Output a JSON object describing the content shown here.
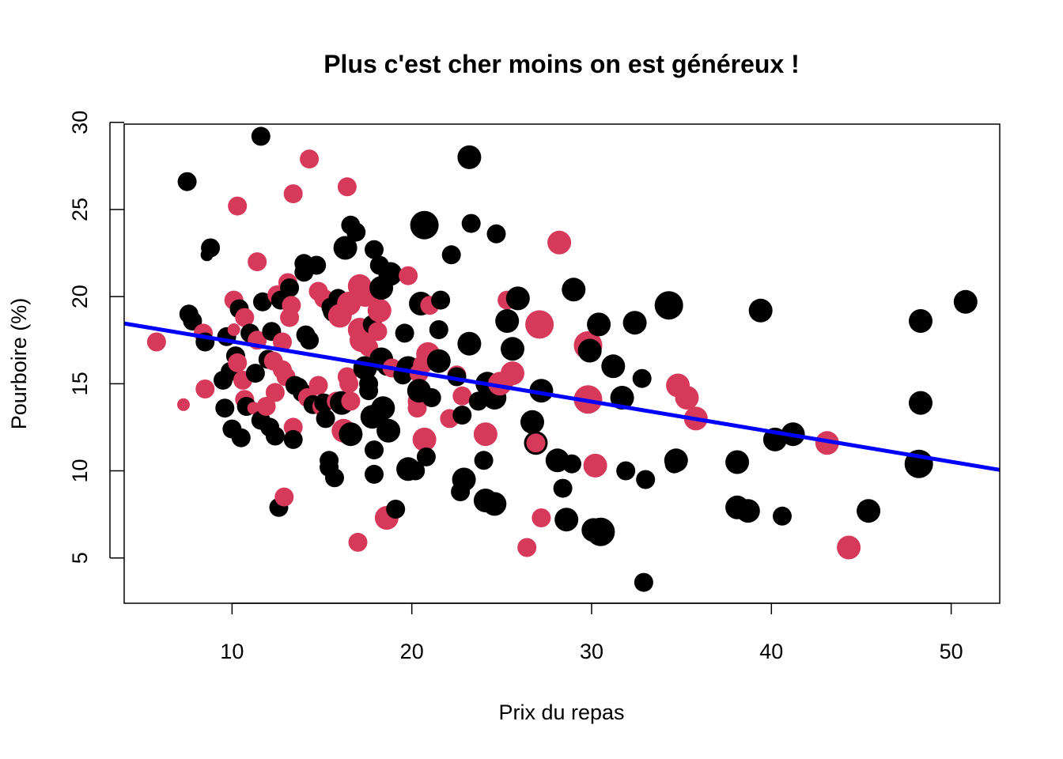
{
  "chart_data": {
    "type": "scatter",
    "title": "Plus c'est cher moins on est généreux !",
    "xlabel": "Prix du repas",
    "ylabel": "Pourboire (%)",
    "xlim": [
      4,
      52.7
    ],
    "ylim": [
      2.4,
      29.9
    ],
    "xticks": [
      10,
      20,
      30,
      40,
      50
    ],
    "yticks": [
      5,
      10,
      15,
      20,
      25,
      30
    ],
    "grid": false,
    "legend": "none",
    "colors": {
      "black": "#000000",
      "red": "#d6395a",
      "line": "#0000ff"
    },
    "size_levels": {
      "1": 8,
      "2": 12,
      "3": 15,
      "4": 18
    },
    "regression": {
      "intercept": 19.15,
      "slope": -0.1726
    },
    "points": [
      {
        "x": 5.8,
        "y": 17.4,
        "c": "red",
        "s": 2
      },
      {
        "x": 7.3,
        "y": 13.8,
        "c": "red",
        "s": 1
      },
      {
        "x": 7.5,
        "y": 26.6,
        "c": "black",
        "s": 2
      },
      {
        "x": 7.6,
        "y": 19.0,
        "c": "black",
        "s": 2
      },
      {
        "x": 7.8,
        "y": 18.6,
        "c": "black",
        "s": 2
      },
      {
        "x": 8.4,
        "y": 17.9,
        "c": "red",
        "s": 2
      },
      {
        "x": 8.5,
        "y": 17.4,
        "c": "black",
        "s": 2
      },
      {
        "x": 8.5,
        "y": 14.7,
        "c": "red",
        "s": 2
      },
      {
        "x": 8.6,
        "y": 22.4,
        "c": "black",
        "s": 1
      },
      {
        "x": 8.8,
        "y": 22.8,
        "c": "black",
        "s": 2
      },
      {
        "x": 9.5,
        "y": 15.2,
        "c": "black",
        "s": 2
      },
      {
        "x": 9.6,
        "y": 13.6,
        "c": "black",
        "s": 2
      },
      {
        "x": 9.7,
        "y": 17.7,
        "c": "black",
        "s": 2
      },
      {
        "x": 9.9,
        "y": 15.7,
        "c": "black",
        "s": 2
      },
      {
        "x": 10.0,
        "y": 12.4,
        "c": "black",
        "s": 2
      },
      {
        "x": 10.1,
        "y": 19.8,
        "c": "red",
        "s": 2
      },
      {
        "x": 10.1,
        "y": 18.1,
        "c": "red",
        "s": 1
      },
      {
        "x": 10.2,
        "y": 16.6,
        "c": "black",
        "s": 2
      },
      {
        "x": 10.3,
        "y": 25.2,
        "c": "red",
        "s": 2
      },
      {
        "x": 10.3,
        "y": 16.2,
        "c": "red",
        "s": 2
      },
      {
        "x": 10.4,
        "y": 19.3,
        "c": "black",
        "s": 2
      },
      {
        "x": 10.5,
        "y": 11.9,
        "c": "black",
        "s": 2
      },
      {
        "x": 10.6,
        "y": 15.2,
        "c": "red",
        "s": 2
      },
      {
        "x": 10.7,
        "y": 18.8,
        "c": "red",
        "s": 2
      },
      {
        "x": 10.7,
        "y": 14.1,
        "c": "red",
        "s": 2
      },
      {
        "x": 10.8,
        "y": 13.7,
        "c": "black",
        "s": 2
      },
      {
        "x": 11.0,
        "y": 17.9,
        "c": "black",
        "s": 2
      },
      {
        "x": 11.2,
        "y": 13.6,
        "c": "red",
        "s": 1
      },
      {
        "x": 11.3,
        "y": 15.6,
        "c": "black",
        "s": 2
      },
      {
        "x": 11.4,
        "y": 22.0,
        "c": "red",
        "s": 2
      },
      {
        "x": 11.4,
        "y": 17.5,
        "c": "red",
        "s": 2
      },
      {
        "x": 11.6,
        "y": 29.2,
        "c": "black",
        "s": 2
      },
      {
        "x": 11.6,
        "y": 12.9,
        "c": "black",
        "s": 2
      },
      {
        "x": 11.7,
        "y": 19.7,
        "c": "black",
        "s": 2
      },
      {
        "x": 11.9,
        "y": 13.7,
        "c": "red",
        "s": 2
      },
      {
        "x": 12.0,
        "y": 16.4,
        "c": "black",
        "s": 2
      },
      {
        "x": 12.1,
        "y": 12.5,
        "c": "black",
        "s": 2
      },
      {
        "x": 12.2,
        "y": 18.0,
        "c": "black",
        "s": 2
      },
      {
        "x": 12.3,
        "y": 16.3,
        "c": "red",
        "s": 2
      },
      {
        "x": 12.4,
        "y": 14.5,
        "c": "red",
        "s": 2
      },
      {
        "x": 12.4,
        "y": 12.0,
        "c": "black",
        "s": 2
      },
      {
        "x": 12.5,
        "y": 20.1,
        "c": "red",
        "s": 2
      },
      {
        "x": 12.6,
        "y": 7.9,
        "c": "black",
        "s": 2
      },
      {
        "x": 12.7,
        "y": 19.8,
        "c": "black",
        "s": 2
      },
      {
        "x": 12.8,
        "y": 17.4,
        "c": "red",
        "s": 2
      },
      {
        "x": 12.8,
        "y": 15.8,
        "c": "red",
        "s": 2
      },
      {
        "x": 12.9,
        "y": 8.5,
        "c": "red",
        "s": 2
      },
      {
        "x": 13.0,
        "y": 15.4,
        "c": "red",
        "s": 2
      },
      {
        "x": 13.1,
        "y": 20.8,
        "c": "red",
        "s": 2
      },
      {
        "x": 13.2,
        "y": 20.5,
        "c": "black",
        "s": 2
      },
      {
        "x": 13.2,
        "y": 18.8,
        "c": "red",
        "s": 2
      },
      {
        "x": 13.3,
        "y": 19.5,
        "c": "red",
        "s": 2
      },
      {
        "x": 13.4,
        "y": 25.9,
        "c": "red",
        "s": 2
      },
      {
        "x": 13.4,
        "y": 12.5,
        "c": "red",
        "s": 2
      },
      {
        "x": 13.4,
        "y": 11.8,
        "c": "black",
        "s": 2
      },
      {
        "x": 13.5,
        "y": 14.9,
        "c": "black",
        "s": 2
      },
      {
        "x": 13.7,
        "y": 14.8,
        "c": "black",
        "s": 2
      },
      {
        "x": 13.9,
        "y": 14.5,
        "c": "black",
        "s": 2
      },
      {
        "x": 14.0,
        "y": 21.9,
        "c": "black",
        "s": 2
      },
      {
        "x": 14.0,
        "y": 21.4,
        "c": "black",
        "s": 2
      },
      {
        "x": 14.1,
        "y": 17.8,
        "c": "black",
        "s": 2
      },
      {
        "x": 14.2,
        "y": 14.2,
        "c": "red",
        "s": 2
      },
      {
        "x": 14.3,
        "y": 27.9,
        "c": "red",
        "s": 2
      },
      {
        "x": 14.3,
        "y": 17.5,
        "c": "black",
        "s": 2
      },
      {
        "x": 14.5,
        "y": 13.8,
        "c": "black",
        "s": 2
      },
      {
        "x": 14.7,
        "y": 21.8,
        "c": "black",
        "s": 2
      },
      {
        "x": 14.8,
        "y": 20.3,
        "c": "red",
        "s": 2
      },
      {
        "x": 14.8,
        "y": 14.9,
        "c": "red",
        "s": 2
      },
      {
        "x": 15.0,
        "y": 13.7,
        "c": "red",
        "s": 2
      },
      {
        "x": 15.1,
        "y": 19.9,
        "c": "red",
        "s": 2
      },
      {
        "x": 15.1,
        "y": 13.9,
        "c": "black",
        "s": 2
      },
      {
        "x": 15.2,
        "y": 13.0,
        "c": "black",
        "s": 2
      },
      {
        "x": 15.4,
        "y": 10.6,
        "c": "black",
        "s": 2
      },
      {
        "x": 15.4,
        "y": 10.2,
        "c": "black",
        "s": 2
      },
      {
        "x": 15.5,
        "y": 19.4,
        "c": "black",
        "s": 2
      },
      {
        "x": 15.7,
        "y": 9.6,
        "c": "black",
        "s": 2
      },
      {
        "x": 15.7,
        "y": 19.2,
        "c": "black",
        "s": 3
      },
      {
        "x": 15.8,
        "y": 14.0,
        "c": "red",
        "s": 2
      },
      {
        "x": 15.9,
        "y": 19.9,
        "c": "black",
        "s": 2
      },
      {
        "x": 16.0,
        "y": 18.9,
        "c": "red",
        "s": 3
      },
      {
        "x": 16.1,
        "y": 13.9,
        "c": "black",
        "s": 3
      },
      {
        "x": 16.2,
        "y": 12.3,
        "c": "red",
        "s": 3
      },
      {
        "x": 16.3,
        "y": 22.8,
        "c": "black",
        "s": 3
      },
      {
        "x": 16.4,
        "y": 26.3,
        "c": "red",
        "s": 2
      },
      {
        "x": 16.4,
        "y": 15.4,
        "c": "red",
        "s": 2
      },
      {
        "x": 16.5,
        "y": 19.6,
        "c": "red",
        "s": 3
      },
      {
        "x": 16.5,
        "y": 15.0,
        "c": "red",
        "s": 2
      },
      {
        "x": 16.6,
        "y": 14.0,
        "c": "red",
        "s": 2
      },
      {
        "x": 16.6,
        "y": 12.1,
        "c": "black",
        "s": 3
      },
      {
        "x": 16.6,
        "y": 24.1,
        "c": "black",
        "s": 2
      },
      {
        "x": 16.9,
        "y": 23.7,
        "c": "black",
        "s": 2
      },
      {
        "x": 17.0,
        "y": 5.9,
        "c": "red",
        "s": 2
      },
      {
        "x": 17.1,
        "y": 18.1,
        "c": "red",
        "s": 3
      },
      {
        "x": 17.1,
        "y": 20.6,
        "c": "red",
        "s": 3
      },
      {
        "x": 17.2,
        "y": 17.5,
        "c": "red",
        "s": 3
      },
      {
        "x": 17.4,
        "y": 15.9,
        "c": "black",
        "s": 3
      },
      {
        "x": 17.4,
        "y": 20.1,
        "c": "red",
        "s": 3
      },
      {
        "x": 17.6,
        "y": 17.1,
        "c": "red",
        "s": 2
      },
      {
        "x": 17.6,
        "y": 15.0,
        "c": "black",
        "s": 2
      },
      {
        "x": 17.6,
        "y": 14.6,
        "c": "black",
        "s": 2
      },
      {
        "x": 17.8,
        "y": 18.4,
        "c": "black",
        "s": 2
      },
      {
        "x": 17.8,
        "y": 13.1,
        "c": "black",
        "s": 3
      },
      {
        "x": 17.9,
        "y": 9.8,
        "c": "black",
        "s": 2
      },
      {
        "x": 17.9,
        "y": 22.7,
        "c": "black",
        "s": 2
      },
      {
        "x": 17.9,
        "y": 11.2,
        "c": "black",
        "s": 2
      },
      {
        "x": 18.1,
        "y": 18.0,
        "c": "red",
        "s": 2
      },
      {
        "x": 18.2,
        "y": 21.8,
        "c": "black",
        "s": 2
      },
      {
        "x": 18.2,
        "y": 19.2,
        "c": "red",
        "s": 3
      },
      {
        "x": 18.3,
        "y": 16.4,
        "c": "black",
        "s": 3
      },
      {
        "x": 18.3,
        "y": 20.5,
        "c": "black",
        "s": 3
      },
      {
        "x": 18.4,
        "y": 13.6,
        "c": "black",
        "s": 3
      },
      {
        "x": 18.6,
        "y": 16.0,
        "c": "black",
        "s": 2
      },
      {
        "x": 18.6,
        "y": 7.3,
        "c": "red",
        "s": 3
      },
      {
        "x": 18.7,
        "y": 12.3,
        "c": "black",
        "s": 3
      },
      {
        "x": 18.8,
        "y": 21.3,
        "c": "black",
        "s": 3
      },
      {
        "x": 18.9,
        "y": 15.9,
        "c": "red",
        "s": 2
      },
      {
        "x": 19.1,
        "y": 7.8,
        "c": "black",
        "s": 2
      },
      {
        "x": 19.5,
        "y": 15.5,
        "c": "black",
        "s": 2
      },
      {
        "x": 19.6,
        "y": 17.9,
        "c": "black",
        "s": 2
      },
      {
        "x": 19.8,
        "y": 21.2,
        "c": "red",
        "s": 2
      },
      {
        "x": 19.8,
        "y": 15.9,
        "c": "black",
        "s": 3
      },
      {
        "x": 19.8,
        "y": 10.1,
        "c": "black",
        "s": 3
      },
      {
        "x": 20.2,
        "y": 10.0,
        "c": "black",
        "s": 2
      },
      {
        "x": 20.3,
        "y": 14.0,
        "c": "red",
        "s": 2
      },
      {
        "x": 20.3,
        "y": 13.6,
        "c": "red",
        "s": 2
      },
      {
        "x": 20.4,
        "y": 15.6,
        "c": "red",
        "s": 2
      },
      {
        "x": 20.4,
        "y": 14.6,
        "c": "black",
        "s": 3
      },
      {
        "x": 20.5,
        "y": 19.6,
        "c": "black",
        "s": 3
      },
      {
        "x": 20.6,
        "y": 16.1,
        "c": "red",
        "s": 2
      },
      {
        "x": 20.7,
        "y": 24.1,
        "c": "black",
        "s": 4
      },
      {
        "x": 20.7,
        "y": 11.8,
        "c": "red",
        "s": 3
      },
      {
        "x": 20.8,
        "y": 10.8,
        "c": "black",
        "s": 2
      },
      {
        "x": 20.9,
        "y": 16.7,
        "c": "red",
        "s": 3
      },
      {
        "x": 21.0,
        "y": 19.5,
        "c": "red",
        "s": 2
      },
      {
        "x": 21.1,
        "y": 14.2,
        "c": "black",
        "s": 2
      },
      {
        "x": 21.5,
        "y": 16.3,
        "c": "black",
        "s": 3
      },
      {
        "x": 21.5,
        "y": 18.1,
        "c": "black",
        "s": 2
      },
      {
        "x": 21.6,
        "y": 19.8,
        "c": "black",
        "s": 2
      },
      {
        "x": 22.1,
        "y": 13.0,
        "c": "red",
        "s": 2
      },
      {
        "x": 22.2,
        "y": 22.4,
        "c": "black",
        "s": 2
      },
      {
        "x": 22.5,
        "y": 15.5,
        "c": "red",
        "s": 2
      },
      {
        "x": 22.5,
        "y": 15.4,
        "c": "black",
        "s": 2
      },
      {
        "x": 22.7,
        "y": 8.8,
        "c": "black",
        "s": 2
      },
      {
        "x": 22.8,
        "y": 13.2,
        "c": "black",
        "s": 2
      },
      {
        "x": 22.8,
        "y": 14.3,
        "c": "red",
        "s": 2
      },
      {
        "x": 22.9,
        "y": 9.5,
        "c": "black",
        "s": 3
      },
      {
        "x": 23.2,
        "y": 28.0,
        "c": "black",
        "s": 3
      },
      {
        "x": 23.2,
        "y": 17.3,
        "c": "black",
        "s": 3
      },
      {
        "x": 23.3,
        "y": 24.2,
        "c": "black",
        "s": 2
      },
      {
        "x": 23.7,
        "y": 14.0,
        "c": "black",
        "s": 2
      },
      {
        "x": 24.0,
        "y": 10.6,
        "c": "black",
        "s": 2
      },
      {
        "x": 24.1,
        "y": 12.1,
        "c": "red",
        "s": 3
      },
      {
        "x": 24.1,
        "y": 8.3,
        "c": "black",
        "s": 3
      },
      {
        "x": 24.2,
        "y": 15.0,
        "c": "black",
        "s": 3
      },
      {
        "x": 24.6,
        "y": 8.1,
        "c": "black",
        "s": 3
      },
      {
        "x": 24.6,
        "y": 14.2,
        "c": "black",
        "s": 3
      },
      {
        "x": 24.7,
        "y": 23.6,
        "c": "black",
        "s": 2
      },
      {
        "x": 24.9,
        "y": 15.0,
        "c": "red",
        "s": 3
      },
      {
        "x": 25.2,
        "y": 15.2,
        "c": "red",
        "s": 2
      },
      {
        "x": 25.3,
        "y": 19.8,
        "c": "red",
        "s": 2
      },
      {
        "x": 25.3,
        "y": 18.6,
        "c": "black",
        "s": 3
      },
      {
        "x": 25.6,
        "y": 17.0,
        "c": "black",
        "s": 3
      },
      {
        "x": 25.6,
        "y": 15.6,
        "c": "red",
        "s": 3
      },
      {
        "x": 25.9,
        "y": 19.9,
        "c": "black",
        "s": 3
      },
      {
        "x": 26.4,
        "y": 5.6,
        "c": "red",
        "s": 2
      },
      {
        "x": 26.7,
        "y": 12.8,
        "c": "black",
        "s": 3
      },
      {
        "x": 26.9,
        "y": 11.6,
        "c": "black",
        "s": 3
      },
      {
        "x": 26.9,
        "y": 11.6,
        "c": "red",
        "s": 2
      },
      {
        "x": 27.1,
        "y": 18.4,
        "c": "red",
        "s": 4
      },
      {
        "x": 27.2,
        "y": 7.3,
        "c": "red",
        "s": 2
      },
      {
        "x": 27.2,
        "y": 14.6,
        "c": "black",
        "s": 3
      },
      {
        "x": 28.1,
        "y": 10.6,
        "c": "black",
        "s": 3
      },
      {
        "x": 28.2,
        "y": 23.1,
        "c": "red",
        "s": 3
      },
      {
        "x": 28.4,
        "y": 9.0,
        "c": "black",
        "s": 2
      },
      {
        "x": 28.6,
        "y": 7.2,
        "c": "black",
        "s": 3
      },
      {
        "x": 28.9,
        "y": 10.4,
        "c": "black",
        "s": 2
      },
      {
        "x": 29.0,
        "y": 20.4,
        "c": "black",
        "s": 3
      },
      {
        "x": 29.8,
        "y": 17.2,
        "c": "red",
        "s": 4
      },
      {
        "x": 29.8,
        "y": 14.1,
        "c": "red",
        "s": 4
      },
      {
        "x": 29.9,
        "y": 16.9,
        "c": "black",
        "s": 3
      },
      {
        "x": 30.1,
        "y": 6.6,
        "c": "black",
        "s": 3
      },
      {
        "x": 30.2,
        "y": 10.3,
        "c": "red",
        "s": 3
      },
      {
        "x": 30.4,
        "y": 18.4,
        "c": "black",
        "s": 3
      },
      {
        "x": 30.5,
        "y": 6.5,
        "c": "black",
        "s": 4
      },
      {
        "x": 31.2,
        "y": 16.0,
        "c": "black",
        "s": 3
      },
      {
        "x": 31.7,
        "y": 14.2,
        "c": "black",
        "s": 3
      },
      {
        "x": 31.9,
        "y": 10.0,
        "c": "black",
        "s": 2
      },
      {
        "x": 32.4,
        "y": 18.5,
        "c": "black",
        "s": 3
      },
      {
        "x": 32.8,
        "y": 15.3,
        "c": "black",
        "s": 2
      },
      {
        "x": 32.9,
        "y": 3.6,
        "c": "black",
        "s": 2
      },
      {
        "x": 33.0,
        "y": 9.5,
        "c": "black",
        "s": 2
      },
      {
        "x": 34.3,
        "y": 19.5,
        "c": "black",
        "s": 4
      },
      {
        "x": 34.6,
        "y": 10.4,
        "c": "black",
        "s": 2
      },
      {
        "x": 34.7,
        "y": 10.6,
        "c": "black",
        "s": 3
      },
      {
        "x": 34.8,
        "y": 14.9,
        "c": "red",
        "s": 3
      },
      {
        "x": 35.3,
        "y": 14.2,
        "c": "red",
        "s": 3
      },
      {
        "x": 35.8,
        "y": 13.0,
        "c": "red",
        "s": 3
      },
      {
        "x": 38.1,
        "y": 10.5,
        "c": "black",
        "s": 3
      },
      {
        "x": 38.1,
        "y": 7.9,
        "c": "black",
        "s": 3
      },
      {
        "x": 38.7,
        "y": 7.7,
        "c": "black",
        "s": 3
      },
      {
        "x": 39.4,
        "y": 19.2,
        "c": "black",
        "s": 3
      },
      {
        "x": 40.2,
        "y": 11.8,
        "c": "black",
        "s": 3
      },
      {
        "x": 40.6,
        "y": 7.4,
        "c": "black",
        "s": 2
      },
      {
        "x": 41.2,
        "y": 12.1,
        "c": "black",
        "s": 3
      },
      {
        "x": 43.1,
        "y": 11.6,
        "c": "red",
        "s": 3
      },
      {
        "x": 44.3,
        "y": 5.6,
        "c": "red",
        "s": 3
      },
      {
        "x": 45.4,
        "y": 7.7,
        "c": "black",
        "s": 3
      },
      {
        "x": 48.2,
        "y": 10.4,
        "c": "black",
        "s": 4
      },
      {
        "x": 48.3,
        "y": 13.9,
        "c": "black",
        "s": 3
      },
      {
        "x": 48.3,
        "y": 18.6,
        "c": "black",
        "s": 3
      },
      {
        "x": 50.8,
        "y": 19.7,
        "c": "black",
        "s": 3
      }
    ]
  }
}
